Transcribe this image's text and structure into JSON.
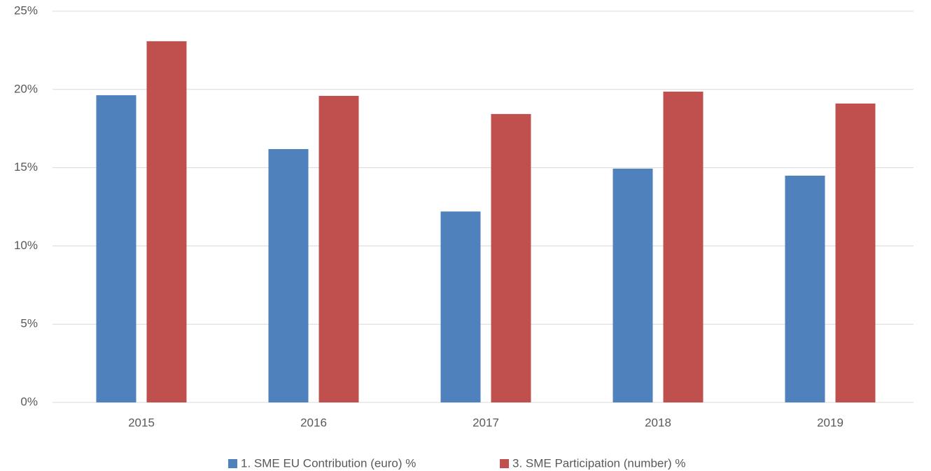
{
  "chart_data": {
    "type": "bar",
    "categories": [
      "2015",
      "2016",
      "2017",
      "2018",
      "2019"
    ],
    "series": [
      {
        "name": "1. SME EU Contribution (euro) %",
        "color": "#4f81bd",
        "values": [
          19.63,
          16.19,
          12.2,
          14.94,
          14.49
        ]
      },
      {
        "name": "3. SME Participation (number) %",
        "color": "#c0504d",
        "values": [
          23.08,
          19.59,
          18.43,
          19.86,
          19.1
        ]
      }
    ],
    "ylim": [
      0,
      25
    ],
    "yticks": [
      {
        "value": 0,
        "label": "0%"
      },
      {
        "value": 5,
        "label": "5%"
      },
      {
        "value": 10,
        "label": "10%"
      },
      {
        "value": 15,
        "label": "15%"
      },
      {
        "value": 20,
        "label": "20%"
      },
      {
        "value": 25,
        "label": "25%"
      }
    ],
    "grid": true,
    "legend": "bottom"
  }
}
